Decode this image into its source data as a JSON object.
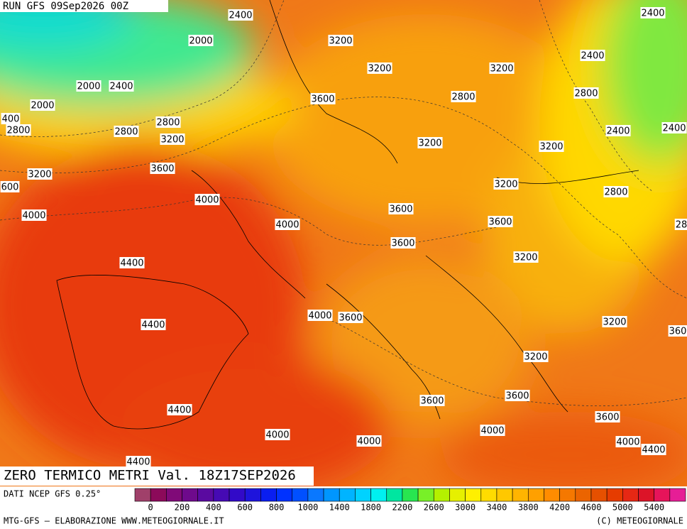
{
  "header": {
    "run": "RUN GFS 09Sep2026 00Z",
    "title": "ZERO TERMICO METRI Val. 18Z17SEP2026"
  },
  "contour_labels": [
    "2400",
    "2400",
    "2000",
    "3200",
    "2400",
    "3200",
    "3200",
    "2000",
    "2400",
    "3600",
    "2800",
    "2800",
    "2000",
    "400",
    "2800",
    "2800",
    "2800",
    "3200",
    "2400",
    "2400",
    "3200",
    "3200",
    "3600",
    "3200",
    "3200",
    "600",
    "2800",
    "4000",
    "3600",
    "4000",
    "4000",
    "3600",
    "28",
    "3600",
    "3200",
    "4400",
    "4000",
    "3600",
    "3200",
    "4400",
    "360",
    "3200",
    "3600",
    "3600",
    "4400",
    "3600",
    "4000",
    "4000",
    "4000",
    "4000",
    "4400",
    "4400"
  ],
  "colorbar": {
    "colors": [
      "#a0406a",
      "#8c0a5a",
      "#800a78",
      "#6e0a8c",
      "#5a0aa0",
      "#460ab4",
      "#320ac8",
      "#1e14dc",
      "#0a1ef0",
      "#0032ff",
      "#0050ff",
      "#0a78ff",
      "#0096ff",
      "#00b4ff",
      "#00d2ff",
      "#00f0f0",
      "#00e6a0",
      "#28e650",
      "#78f028",
      "#b4f000",
      "#e6f000",
      "#fff000",
      "#ffdc00",
      "#ffc800",
      "#ffb400",
      "#ffa000",
      "#ff8c00",
      "#f57800",
      "#eb6400",
      "#e65000",
      "#e63c00",
      "#e62814",
      "#dc1428",
      "#e6145a",
      "#e61e96"
    ],
    "labels": [
      0,
      200,
      400,
      600,
      800,
      1000,
      1400,
      1800,
      2200,
      2600,
      3000,
      3400,
      3800,
      4200,
      4600,
      5000,
      5400
    ]
  },
  "footer": {
    "source": "DATI NCEP GFS 0.25°",
    "credit": "MTG-GFS — ELABORAZIONE WWW.METEOGIORNALE.IT",
    "copyright": "(C) METEOGIORNALE"
  }
}
